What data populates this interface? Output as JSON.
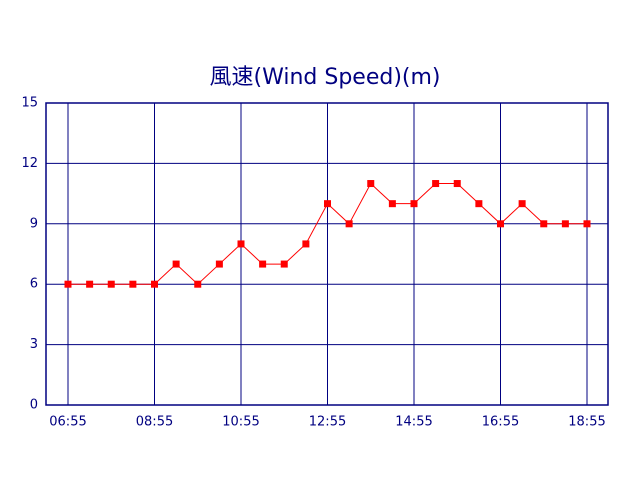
{
  "chart_data": {
    "type": "line",
    "title": "風速(Wind Speed)(m)",
    "categories": [
      "06:55",
      null,
      null,
      null,
      "08:55",
      null,
      null,
      null,
      "10:55",
      null,
      null,
      null,
      "12:55",
      null,
      null,
      null,
      "14:55",
      null,
      null,
      null,
      "16:55",
      null,
      null,
      null,
      "18:55"
    ],
    "values": [
      6,
      6,
      6,
      6,
      6,
      7,
      6,
      7,
      8,
      7,
      7,
      8,
      10,
      9,
      11,
      10,
      10,
      11,
      11,
      10,
      9,
      10,
      9,
      9,
      9
    ],
    "color": "#ff0000",
    "ylim": [
      0,
      15
    ],
    "yticks": [
      0,
      3,
      6,
      9,
      12,
      15
    ],
    "grid": true
  }
}
